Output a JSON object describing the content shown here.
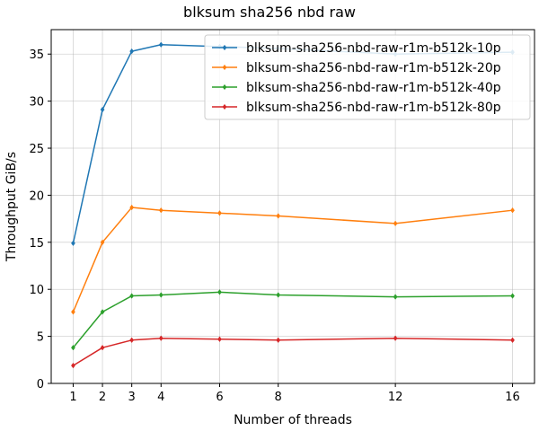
{
  "chart_data": {
    "type": "line",
    "title": "blksum sha256 nbd raw",
    "xlabel": "Number of threads",
    "ylabel": "Throughput GiB/s",
    "x": [
      1,
      2,
      3,
      4,
      6,
      8,
      12,
      16
    ],
    "xticks": [
      1,
      2,
      3,
      4,
      6,
      8,
      12,
      16
    ],
    "yticks": [
      0,
      5,
      10,
      15,
      20,
      25,
      30,
      35
    ],
    "xlim": [
      0.25,
      16.75
    ],
    "ylim": [
      0,
      37.6
    ],
    "grid": true,
    "legend_position": "top-right",
    "series": [
      {
        "name": "blksum-sha256-nbd-raw-r1m-b512k-10p",
        "color": "#1f77b4",
        "values": [
          14.9,
          29.1,
          35.3,
          36.0,
          35.8,
          35.6,
          35.0,
          35.2
        ]
      },
      {
        "name": "blksum-sha256-nbd-raw-r1m-b512k-20p",
        "color": "#ff7f0e",
        "values": [
          7.6,
          15.0,
          18.7,
          18.4,
          18.1,
          17.8,
          17.0,
          18.4
        ]
      },
      {
        "name": "blksum-sha256-nbd-raw-r1m-b512k-40p",
        "color": "#2ca02c",
        "values": [
          3.8,
          7.6,
          9.3,
          9.4,
          9.7,
          9.4,
          9.2,
          9.3
        ]
      },
      {
        "name": "blksum-sha256-nbd-raw-r1m-b512k-80p",
        "color": "#d62728",
        "values": [
          1.9,
          3.8,
          4.6,
          4.8,
          4.7,
          4.6,
          4.8,
          4.6
        ]
      }
    ]
  }
}
